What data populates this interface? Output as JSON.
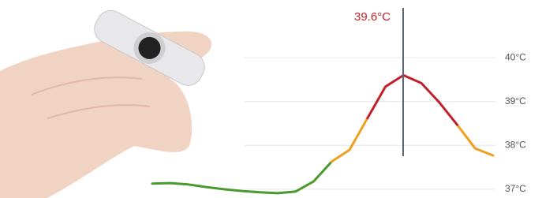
{
  "chart_data": {
    "type": "line",
    "annotation": "39.6°C",
    "categories": [
      null,
      null,
      null,
      null,
      null,
      null,
      null,
      null,
      null,
      null,
      null,
      null,
      null,
      null,
      null,
      null,
      null,
      null,
      null,
      null
    ],
    "series": [
      {
        "color": "#4a9a2e",
        "values": [
          37.13,
          37.14,
          37.11,
          37.05,
          37.0,
          36.96,
          36.93,
          36.91,
          36.95,
          37.18,
          37.63,
          null,
          null,
          null,
          null,
          null,
          null,
          null,
          null,
          null
        ]
      },
      {
        "color": "#f0a020",
        "values": [
          null,
          null,
          null,
          null,
          null,
          null,
          null,
          null,
          null,
          null,
          37.63,
          37.9,
          38.62,
          null,
          null,
          null,
          null,
          38.47,
          37.93,
          37.77
        ]
      },
      {
        "color": "#c0202a",
        "values": [
          null,
          null,
          null,
          null,
          null,
          null,
          null,
          null,
          null,
          null,
          null,
          null,
          38.62,
          39.34,
          39.6,
          39.42,
          38.98,
          38.47,
          null,
          null
        ]
      }
    ],
    "ylim": [
      36.8,
      40.2
    ],
    "yticks": [
      {
        "value": 37,
        "label": "37°C"
      },
      {
        "value": 38,
        "label": "38°C"
      },
      {
        "value": 39,
        "label": "39°C"
      },
      {
        "value": 40,
        "label": "40°C"
      }
    ],
    "grid": true
  }
}
